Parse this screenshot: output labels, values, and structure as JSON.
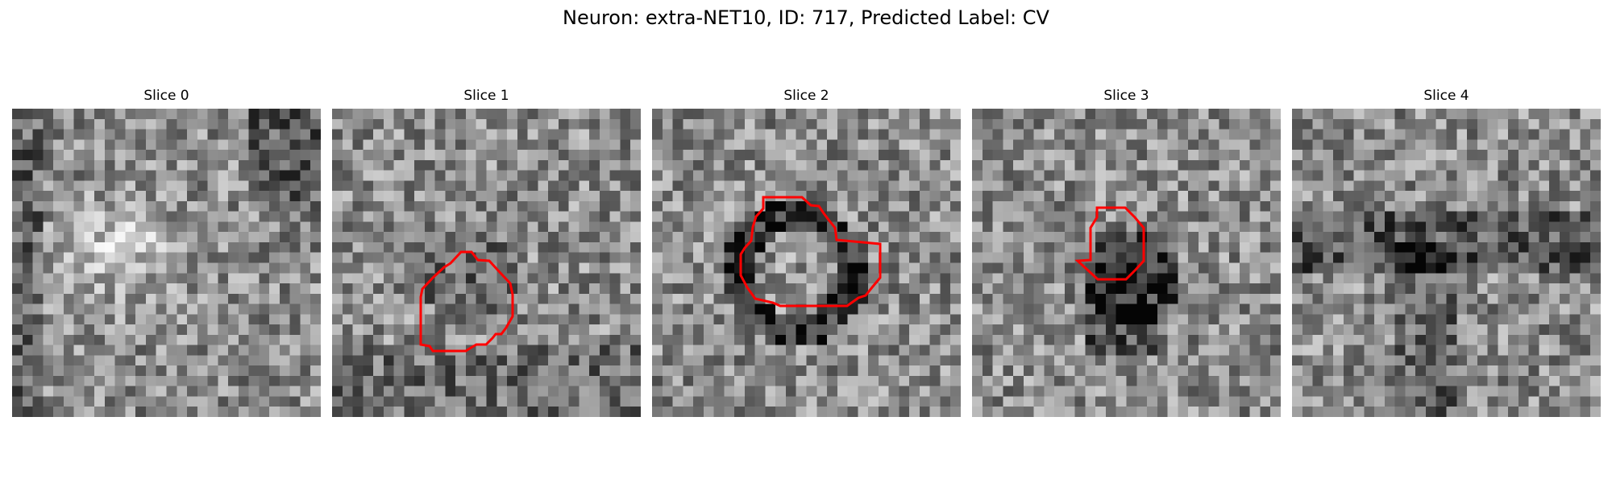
{
  "figure": {
    "title": "Neuron: extra-NET10, ID: 717, Predicted Label: CV"
  },
  "panels": [
    {
      "label": "Slice 0",
      "has_roi": false,
      "seed": 11
    },
    {
      "label": "Slice 1",
      "has_roi": true,
      "seed": 23
    },
    {
      "label": "Slice 2",
      "has_roi": true,
      "seed": 37
    },
    {
      "label": "Slice 3",
      "has_roi": true,
      "seed": 53
    },
    {
      "label": "Slice 4",
      "has_roi": false,
      "seed": 71
    }
  ],
  "colors": {
    "roi_outline": "#ff0000",
    "colormap": "gray"
  }
}
